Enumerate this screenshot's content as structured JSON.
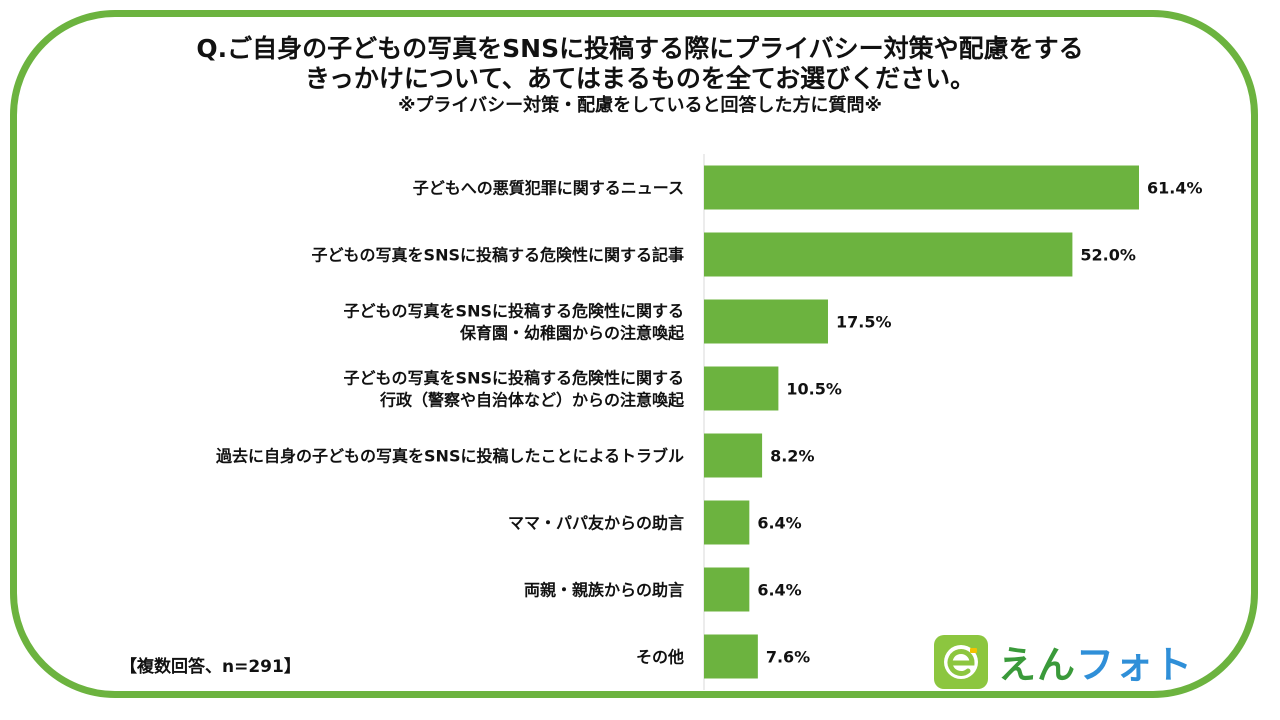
{
  "header": {
    "line1": "Q.ご自身の子どもの写真をSNSに投稿する際にプライバシー対策や配慮をする",
    "line2": "きっかけについて、あてはまるものを全てお選びください。",
    "line3": "※プライバシー対策・配慮をしていると回答した方に質問※"
  },
  "note": "【複数回答、n=291】",
  "logo": {
    "text_part1": "えん",
    "text_part2": "フォト"
  },
  "colors": {
    "bar": "#6cb33f",
    "frame": "#6cb33f",
    "axis": "#d9d9d9"
  },
  "chart_data": {
    "type": "bar",
    "orientation": "horizontal",
    "unit": "%",
    "categories": [
      [
        "子どもへの悪質犯罪に関するニュース"
      ],
      [
        "子どもの写真をSNSに投稿する危険性に関する記事"
      ],
      [
        "子どもの写真をSNSに投稿する危険性に関する",
        "保育園・幼稚園からの注意喚起"
      ],
      [
        "子どもの写真をSNSに投稿する危険性に関する",
        "行政（警察や自治体など）からの注意喚起"
      ],
      [
        "過去に自身の子どもの写真をSNSに投稿したことによるトラブル"
      ],
      [
        "ママ・パパ友からの助言"
      ],
      [
        "両親・親族からの助言"
      ],
      [
        "その他"
      ]
    ],
    "values": [
      61.4,
      52.0,
      17.5,
      10.5,
      8.2,
      6.4,
      6.4,
      7.6
    ],
    "value_labels": [
      "61.4%",
      "52.0%",
      "17.5%",
      "10.5%",
      "8.2%",
      "6.4%",
      "6.4%",
      "7.6%"
    ],
    "xlim": [
      0,
      70
    ]
  }
}
